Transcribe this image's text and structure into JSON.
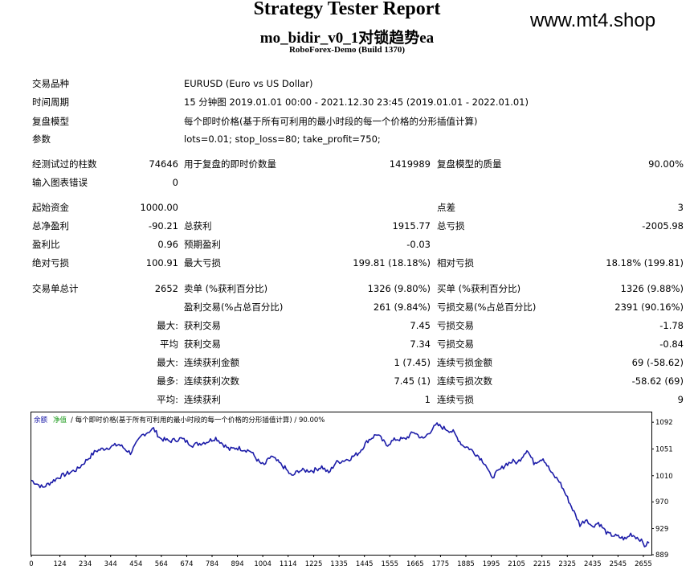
{
  "header": {
    "title": "Strategy Tester Report",
    "ea_name": "mo_bidir_v0_1对锁趋势ea",
    "server": "RoboForex-Demo (Build 1370)",
    "watermark": "www.mt4.shop"
  },
  "info": [
    {
      "label": "交易品种",
      "value": "EURUSD (Euro vs US Dollar)"
    },
    {
      "label": "时间周期",
      "value": "15 分钟图 2019.01.01 00:00 - 2021.12.30 23:45 (2019.01.01 - 2022.01.01)"
    },
    {
      "label": "复盘模型",
      "value": "每个即时价格(基于所有可利用的最小时段的每一个价格的分形插值计算)"
    },
    {
      "label": "参数",
      "value": "lots=0.01; stop_loss=80; take_profit=750;"
    }
  ],
  "stats": {
    "bars_label": "经测试过的柱数",
    "bars_value": "74646",
    "ticks_label": "用于复盘的即时价数量",
    "ticks_value": "1419989",
    "quality_label": "复盘模型的质量",
    "quality_value": "90.00%",
    "errors_label": "输入图表错误",
    "errors_value": "0",
    "deposit_label": "起始资金",
    "deposit_value": "1000.00",
    "spread_label": "点差",
    "spread_value": "3",
    "net_label": "总净盈利",
    "net_value": "-90.21",
    "gross_profit_label": "总获利",
    "gross_profit_value": "1915.77",
    "gross_loss_label": "总亏损",
    "gross_loss_value": "-2005.98",
    "pf_label": "盈利比",
    "pf_value": "0.96",
    "payoff_label": "预期盈利",
    "payoff_value": "-0.03",
    "abs_dd_label": "绝对亏损",
    "abs_dd_value": "100.91",
    "max_dd_label": "最大亏损",
    "max_dd_value": "199.81 (18.18%)",
    "rel_dd_label": "相对亏损",
    "rel_dd_value": "18.18% (199.81)",
    "trades_label": "交易单总计",
    "trades_value": "2652",
    "short_label": "卖单 (%获利百分比)",
    "short_value": "1326 (9.80%)",
    "long_label": "买单 (%获利百分比)",
    "long_value": "1326 (9.88%)",
    "profit_trades_label": "盈利交易(%占总百分比)",
    "profit_trades_value": "261 (9.84%)",
    "loss_trades_label": "亏损交易(%占总百分比)",
    "loss_trades_value": "2391 (90.16%)",
    "r1_prefix": "最大:",
    "r1_a_label": "获利交易",
    "r1_a_value": "7.45",
    "r1_b_label": "亏损交易",
    "r1_b_value": "-1.78",
    "r2_prefix": "平均",
    "r2_a_label": "获利交易",
    "r2_a_value": "7.34",
    "r2_b_label": "亏损交易",
    "r2_b_value": "-0.84",
    "r3_prefix": "最大:",
    "r3_a_label": "连续获利金额",
    "r3_a_value": "1 (7.45)",
    "r3_b_label": "连续亏损金额",
    "r3_b_value": "69 (-58.62)",
    "r4_prefix": "最多:",
    "r4_a_label": "连续获利次数",
    "r4_a_value": "7.45 (1)",
    "r4_b_label": "连续亏损次数",
    "r4_b_value": "-58.62 (69)",
    "r5_prefix": "平均:",
    "r5_a_label": "连续获利",
    "r5_a_value": "1",
    "r5_b_label": "连续亏损",
    "r5_b_value": "9"
  },
  "chart_data": {
    "type": "line",
    "legend_balance": "余额",
    "legend_equity": "净值",
    "legend_rest": "/ 每个即时价格(基于所有可利用的最小时段的每一个价格的分形插值计算) / 90.00%",
    "line_color": "#1c1ca8",
    "xticks": [
      0,
      124,
      234,
      344,
      454,
      564,
      674,
      784,
      894,
      1004,
      1114,
      1225,
      1335,
      1445,
      1555,
      1665,
      1775,
      1885,
      1995,
      2105,
      2215,
      2325,
      2435,
      2545,
      2655
    ],
    "yticks": [
      889,
      929,
      970,
      1010,
      1051,
      1092
    ],
    "xlim": [
      0,
      2690
    ],
    "ylim": [
      889,
      1107
    ],
    "series": [
      {
        "x": [
          0,
          50,
          120,
          200,
          280,
          380,
          430,
          480,
          530,
          560,
          600,
          650,
          700,
          760,
          800,
          860,
          890,
          950,
          990,
          1010,
          1040,
          1100,
          1130,
          1160,
          1225,
          1260,
          1290,
          1320,
          1380,
          1420,
          1460,
          1500,
          1540,
          1580,
          1620,
          1660,
          1700,
          1740,
          1760,
          1790,
          1830,
          1870,
          1900,
          1940,
          1970,
          1995,
          2030,
          2060,
          2090,
          2110,
          2150,
          2180,
          2220,
          2260,
          2290,
          2320,
          2360,
          2380,
          2410,
          2430,
          2460,
          2500,
          2540,
          2580,
          2600,
          2640,
          2660,
          2680
        ],
        "y": [
          1003,
          992,
          1008,
          1020,
          1048,
          1058,
          1045,
          1072,
          1082,
          1067,
          1063,
          1067,
          1057,
          1062,
          1068,
          1050,
          1053,
          1048,
          1030,
          1026,
          1040,
          1022,
          1009,
          1018,
          1018,
          1024,
          1014,
          1030,
          1036,
          1045,
          1064,
          1074,
          1057,
          1066,
          1066,
          1077,
          1066,
          1082,
          1088,
          1083,
          1077,
          1057,
          1052,
          1040,
          1028,
          1007,
          1018,
          1028,
          1032,
          1030,
          1050,
          1030,
          1037,
          1012,
          1002,
          980,
          950,
          935,
          944,
          932,
          938,
          921,
          917,
          913,
          921,
          913,
          903,
          907
        ]
      }
    ]
  }
}
